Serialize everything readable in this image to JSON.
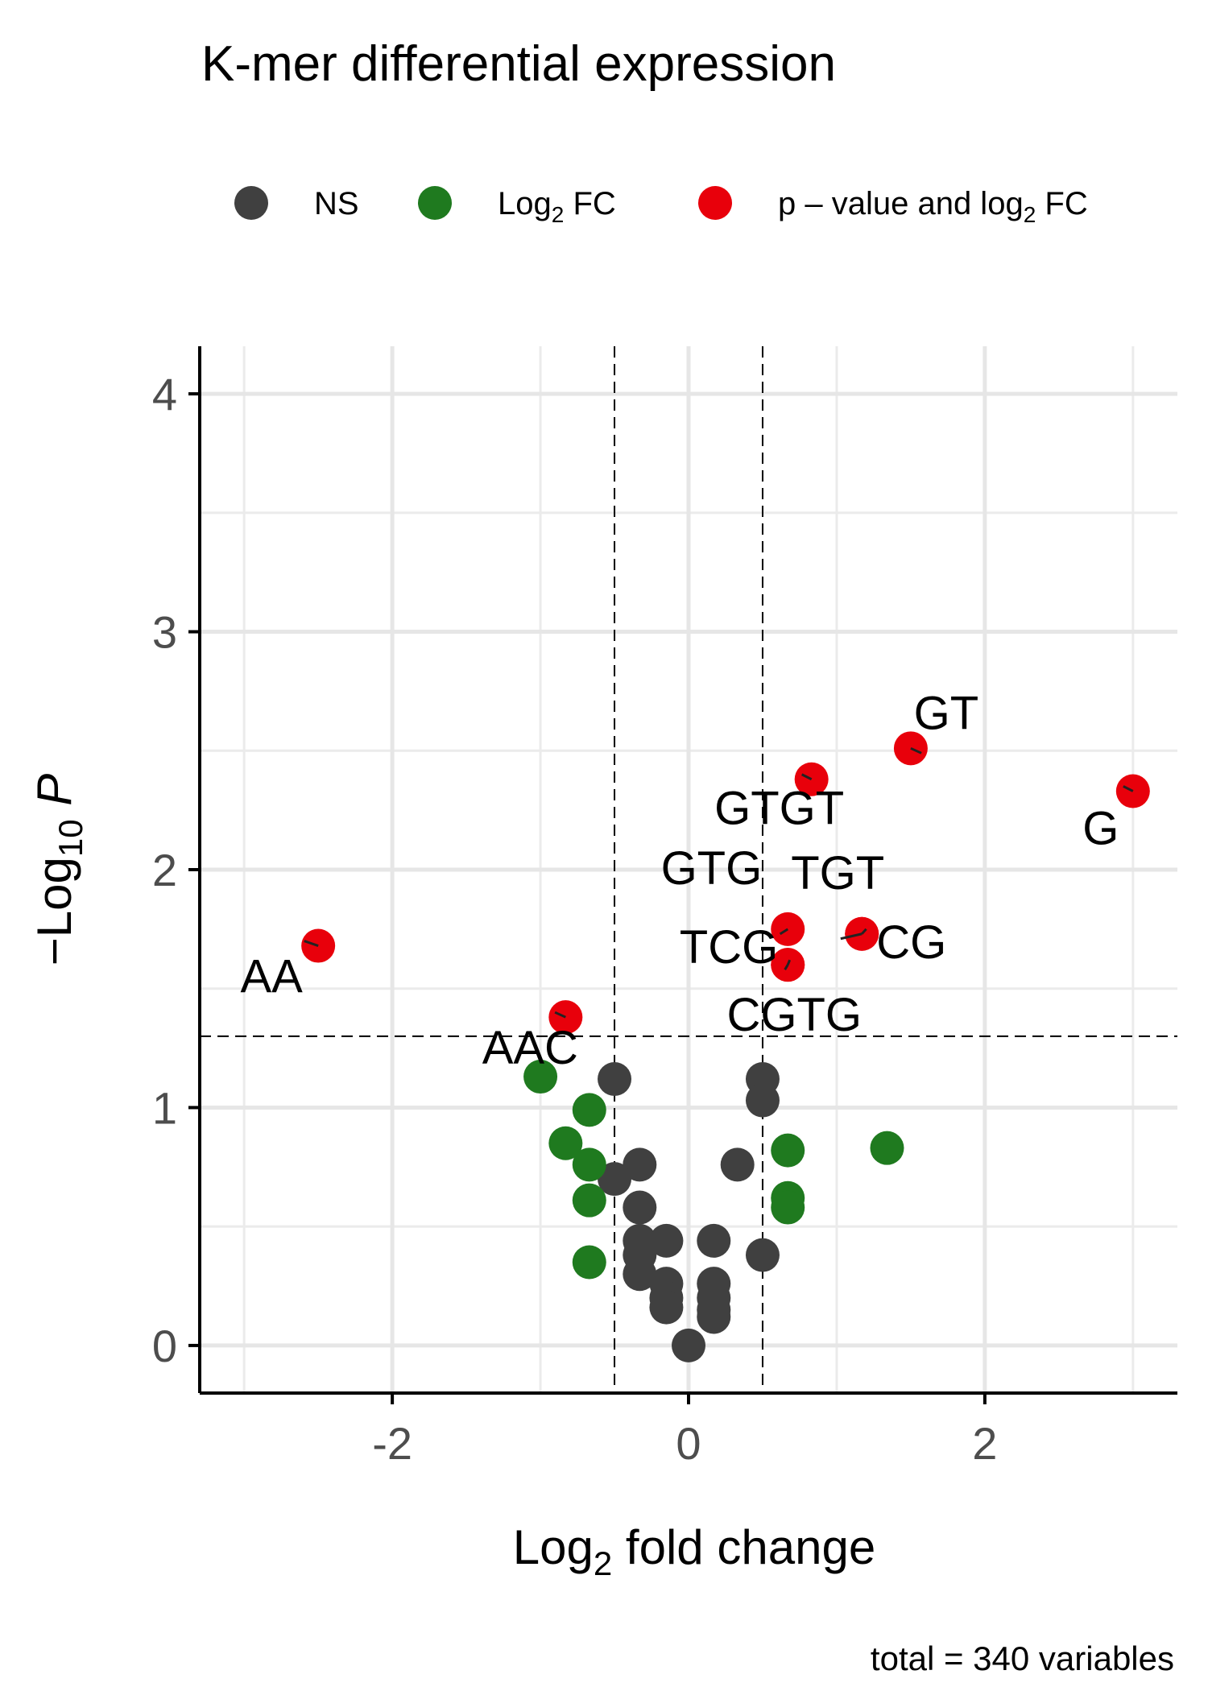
{
  "chart_data": {
    "type": "scatter",
    "title": "K-mer differential expression",
    "xlabel": "Log2 fold change",
    "ylabel": "−Log10 P",
    "caption": "total = 340 variables",
    "xlim": [
      -3.3,
      3.3
    ],
    "ylim": [
      -0.2,
      4.2
    ],
    "x_ticks": [
      -2,
      0,
      2
    ],
    "y_ticks": [
      0,
      1,
      2,
      3,
      4
    ],
    "grid": true,
    "legend_position": "top",
    "cutoffs": {
      "log2fc": [
        -0.5,
        0.5
      ],
      "neg_log10_p": 1.3
    },
    "legend": [
      {
        "key": "ns",
        "label": "NS",
        "color": "#404040"
      },
      {
        "key": "fc",
        "label": "Log2 FC",
        "color": "#1f7a1f"
      },
      {
        "key": "both",
        "label": "p – value and log2 FC",
        "color": "#e8000b"
      }
    ],
    "series": [
      {
        "name": "NS",
        "color": "#404040",
        "points": [
          [
            -0.5,
            1.12
          ],
          [
            0.5,
            1.12
          ],
          [
            0.5,
            1.03
          ],
          [
            -0.33,
            0.76
          ],
          [
            0.33,
            0.76
          ],
          [
            -0.5,
            0.7
          ],
          [
            -0.33,
            0.58
          ],
          [
            -0.33,
            0.44
          ],
          [
            -0.15,
            0.44
          ],
          [
            0.17,
            0.44
          ],
          [
            -0.33,
            0.38
          ],
          [
            0.5,
            0.38
          ],
          [
            -0.33,
            0.3
          ],
          [
            -0.15,
            0.26
          ],
          [
            0.17,
            0.26
          ],
          [
            -0.15,
            0.2
          ],
          [
            0.17,
            0.2
          ],
          [
            -0.15,
            0.16
          ],
          [
            0.17,
            0.15
          ],
          [
            0.17,
            0.12
          ],
          [
            0.0,
            0.0
          ]
        ]
      },
      {
        "name": "Log2 FC",
        "color": "#1f7a1f",
        "points": [
          [
            -1.0,
            1.13
          ],
          [
            -0.67,
            0.99
          ],
          [
            -0.83,
            0.85
          ],
          [
            -0.67,
            0.76
          ],
          [
            -0.67,
            0.61
          ],
          [
            -0.67,
            0.35
          ],
          [
            0.67,
            0.82
          ],
          [
            1.34,
            0.83
          ],
          [
            0.67,
            0.62
          ],
          [
            0.67,
            0.58
          ]
        ]
      },
      {
        "name": "p – value and log2 FC",
        "color": "#e8000b",
        "points": [
          {
            "label": "AA",
            "x": -2.5,
            "y": 1.68
          },
          {
            "label": "AAC",
            "x": -0.83,
            "y": 1.38
          },
          {
            "label": "GTGT",
            "x": 0.83,
            "y": 2.38
          },
          {
            "label": "GT",
            "x": 1.5,
            "y": 2.51
          },
          {
            "label": "G",
            "x": 3.0,
            "y": 2.33
          },
          {
            "label": "GTG",
            "x": 0.67,
            "y": 1.75
          },
          {
            "label": "TGT",
            "x": 1.17,
            "y": 1.73
          },
          {
            "label": "CG",
            "x": 1.17,
            "y": 1.73
          },
          {
            "label": "TCG",
            "x": 0.67,
            "y": 1.6
          },
          {
            "label": "CGTG",
            "x": 0.67,
            "y": 1.6
          }
        ]
      }
    ]
  }
}
